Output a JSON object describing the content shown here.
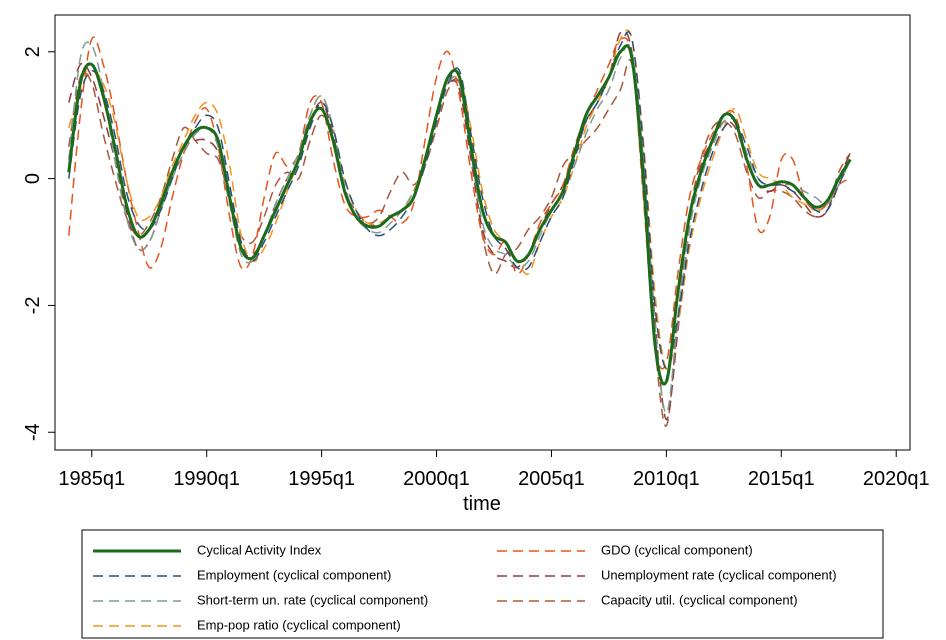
{
  "chart_data": {
    "type": "line",
    "xlabel": "time",
    "legend": "bottom",
    "grid": false,
    "x": [
      1984,
      1984.5,
      1985,
      1985.5,
      1986,
      1986.5,
      1987,
      1987.5,
      1988,
      1988.5,
      1989,
      1989.5,
      1990,
      1990.5,
      1991,
      1991.5,
      1992,
      1992.5,
      1993,
      1993.5,
      1994,
      1994.5,
      1995,
      1995.5,
      1996,
      1996.5,
      1997,
      1997.5,
      1998,
      1998.5,
      1999,
      1999.5,
      2000,
      2000.5,
      2001,
      2001.5,
      2002,
      2002.5,
      2003,
      2003.5,
      2004,
      2004.5,
      2005,
      2005.5,
      2006,
      2006.5,
      2007,
      2007.5,
      2008,
      2008.5,
      2009,
      2009.5,
      2010,
      2010.5,
      2011,
      2011.5,
      2012,
      2012.5,
      2013,
      2013.5,
      2014,
      2014.5,
      2015,
      2015.5,
      2016,
      2016.5,
      2017,
      2017.5,
      2018
    ],
    "xlim": [
      1983.4,
      2020.6
    ],
    "ylim": [
      -4.28,
      2.58
    ],
    "xticks": [
      {
        "value": 1985,
        "label": "1985q1"
      },
      {
        "value": 1990,
        "label": "1990q1"
      },
      {
        "value": 1995,
        "label": "1995q1"
      },
      {
        "value": 2000,
        "label": "2000q1"
      },
      {
        "value": 2005,
        "label": "2005q1"
      },
      {
        "value": 2010,
        "label": "2010q1"
      },
      {
        "value": 2015,
        "label": "2015q1"
      },
      {
        "value": 2020,
        "label": "2020q1"
      }
    ],
    "yticks": [
      -4,
      -2,
      0,
      2
    ],
    "series": [
      {
        "name": "Cyclical Activity Index",
        "color": "#1b6b1b",
        "dashed": false,
        "values": [
          0.1,
          1.5,
          1.8,
          1.3,
          0.5,
          -0.4,
          -0.9,
          -0.8,
          -0.4,
          0.1,
          0.5,
          0.75,
          0.8,
          0.6,
          -0.3,
          -1.1,
          -1.25,
          -0.9,
          -0.5,
          -0.1,
          0.3,
          0.9,
          1.1,
          0.6,
          -0.2,
          -0.6,
          -0.75,
          -0.75,
          -0.6,
          -0.5,
          -0.3,
          0.3,
          1.0,
          1.6,
          1.6,
          0.5,
          -0.5,
          -0.9,
          -1.0,
          -1.3,
          -1.2,
          -0.8,
          -0.5,
          -0.2,
          0.4,
          1.0,
          1.3,
          1.6,
          2.0,
          1.9,
          0.0,
          -2.6,
          -3.2,
          -1.8,
          -0.6,
          0.1,
          0.6,
          1.0,
          0.9,
          0.3,
          -0.1,
          -0.1,
          -0.05,
          -0.1,
          -0.3,
          -0.45,
          -0.35,
          0.0,
          0.3
        ]
      },
      {
        "name": "Employment (cyclical component)",
        "color": "#2a4f7a",
        "dashed": true,
        "values": [
          0.0,
          1.3,
          1.7,
          1.4,
          0.7,
          -0.2,
          -0.7,
          -0.8,
          -0.5,
          0.0,
          0.5,
          0.8,
          1.0,
          0.8,
          -0.1,
          -1.0,
          -1.3,
          -1.0,
          -0.6,
          -0.2,
          0.2,
          0.8,
          1.2,
          0.8,
          0.0,
          -0.5,
          -0.8,
          -0.9,
          -0.8,
          -0.6,
          -0.3,
          0.2,
          0.9,
          1.5,
          1.7,
          0.7,
          -0.3,
          -0.9,
          -1.1,
          -1.4,
          -1.4,
          -1.0,
          -0.6,
          -0.3,
          0.3,
          0.9,
          1.2,
          1.6,
          2.1,
          2.2,
          0.5,
          -2.0,
          -3.0,
          -2.2,
          -1.0,
          -0.2,
          0.4,
          0.8,
          0.9,
          0.5,
          0.0,
          -0.1,
          -0.1,
          -0.2,
          -0.3,
          -0.5,
          -0.5,
          -0.1,
          0.3
        ]
      },
      {
        "name": "Short-term un. rate (cyclical component)",
        "color": "#7f9c91",
        "dashed": true,
        "values": [
          0.3,
          1.9,
          2.1,
          1.4,
          0.3,
          -0.6,
          -1.1,
          -1.0,
          -0.5,
          0.0,
          0.4,
          0.7,
          0.8,
          0.5,
          -0.4,
          -1.2,
          -1.3,
          -0.9,
          -0.4,
          0.0,
          0.4,
          1.0,
          1.3,
          0.8,
          -0.1,
          -0.6,
          -0.8,
          -0.85,
          -0.7,
          -0.5,
          -0.2,
          0.2,
          0.9,
          1.5,
          1.5,
          0.4,
          -0.7,
          -1.1,
          -1.2,
          -1.4,
          -1.3,
          -0.9,
          -0.5,
          -0.2,
          0.2,
          0.7,
          1.1,
          1.4,
          1.9,
          2.0,
          0.3,
          -2.3,
          -3.7,
          -2.2,
          -0.8,
          0.0,
          0.5,
          0.9,
          0.9,
          0.4,
          0.0,
          -0.1,
          -0.1,
          -0.1,
          -0.2,
          -0.3,
          -0.4,
          -0.1,
          0.3
        ]
      },
      {
        "name": "Emp-pop ratio (cyclical component)",
        "color": "#f5921e",
        "dashed": true,
        "values": [
          0.8,
          1.4,
          1.7,
          1.5,
          0.9,
          0.0,
          -0.6,
          -0.6,
          -0.3,
          0.2,
          0.6,
          1.0,
          1.2,
          1.0,
          0.2,
          -0.9,
          -1.3,
          -1.1,
          -0.7,
          -0.2,
          0.3,
          1.0,
          1.3,
          0.8,
          0.0,
          -0.5,
          -0.7,
          -0.7,
          -0.6,
          -0.5,
          -0.2,
          0.3,
          1.0,
          1.5,
          1.6,
          0.8,
          -0.2,
          -0.8,
          -1.0,
          -1.3,
          -1.5,
          -1.0,
          -0.6,
          -0.3,
          0.2,
          0.8,
          1.2,
          1.6,
          2.2,
          2.2,
          0.6,
          -1.8,
          -3.0,
          -2.3,
          -1.1,
          -0.3,
          0.3,
          0.8,
          1.1,
          0.6,
          0.1,
          0.0,
          -0.1,
          -0.3,
          -0.4,
          -0.5,
          -0.4,
          -0.1,
          0.3
        ]
      },
      {
        "name": "GDO (cyclical component)",
        "color": "#e5541e",
        "dashed": true,
        "values": [
          -0.9,
          1.0,
          2.2,
          1.8,
          1.0,
          0.0,
          -0.8,
          -1.4,
          -1.1,
          -0.3,
          0.4,
          0.9,
          1.1,
          0.5,
          -0.6,
          -1.4,
          -1.2,
          -0.3,
          0.4,
          0.2,
          0.4,
          1.2,
          1.2,
          0.3,
          -0.4,
          -0.6,
          -0.6,
          -0.5,
          -0.6,
          -0.7,
          -0.4,
          0.6,
          1.6,
          2.0,
          1.3,
          0.1,
          -0.9,
          -1.2,
          -1.0,
          -1.5,
          -1.2,
          -0.7,
          -0.4,
          -0.1,
          0.5,
          1.0,
          1.4,
          1.8,
          2.2,
          1.9,
          -0.3,
          -2.6,
          -2.9,
          -1.5,
          -0.3,
          0.3,
          0.7,
          1.0,
          1.0,
          0.2,
          -0.8,
          -0.6,
          0.3,
          0.3,
          -0.3,
          -0.5,
          -0.4,
          -0.1,
          0.0
        ]
      },
      {
        "name": "Unemployment rate (cyclical component)",
        "color": "#8e3b3f",
        "dashed": true,
        "values": [
          1.2,
          1.8,
          1.6,
          1.0,
          0.3,
          -0.5,
          -1.1,
          -1.0,
          -0.5,
          0.1,
          0.5,
          0.6,
          0.6,
          0.4,
          -0.4,
          -1.1,
          -1.2,
          -0.9,
          -0.4,
          0.0,
          0.3,
          0.9,
          1.2,
          0.7,
          -0.2,
          -0.6,
          -0.7,
          -0.75,
          -0.6,
          -0.5,
          -0.3,
          0.3,
          1.0,
          1.5,
          1.4,
          0.3,
          -0.8,
          -1.2,
          -1.3,
          -1.4,
          -1.2,
          -0.8,
          -0.4,
          -0.1,
          0.4,
          0.9,
          1.2,
          1.6,
          2.3,
          2.0,
          0.2,
          -2.2,
          -3.8,
          -2.4,
          -0.8,
          0.2,
          0.6,
          0.9,
          0.8,
          0.3,
          -0.1,
          -0.2,
          -0.1,
          -0.2,
          -0.4,
          -0.6,
          -0.5,
          0.0,
          0.4
        ]
      },
      {
        "name": "Capacity util. (cyclical component)",
        "color": "#a8583a",
        "dashed": true,
        "values": [
          0.5,
          1.6,
          1.5,
          0.7,
          0.0,
          -0.6,
          -0.9,
          -0.7,
          -0.3,
          0.3,
          0.8,
          0.6,
          0.4,
          0.3,
          -0.3,
          -0.9,
          -1.0,
          -0.6,
          -0.1,
          0.1,
          0.0,
          0.6,
          1.0,
          0.6,
          -0.2,
          -0.5,
          -0.7,
          -0.6,
          -0.2,
          0.1,
          -0.1,
          0.2,
          0.8,
          1.4,
          1.5,
          0.4,
          -0.9,
          -1.5,
          -1.2,
          -1.1,
          -0.8,
          -0.6,
          -0.3,
          0.2,
          0.4,
          0.6,
          0.8,
          1.1,
          1.4,
          1.8,
          -0.2,
          -2.6,
          -3.9,
          -2.2,
          -0.6,
          0.3,
          0.8,
          0.9,
          0.7,
          0.1,
          -0.3,
          -0.2,
          -0.2,
          -0.3,
          -0.5,
          -0.6,
          -0.5,
          0.1,
          0.4
        ]
      }
    ]
  }
}
